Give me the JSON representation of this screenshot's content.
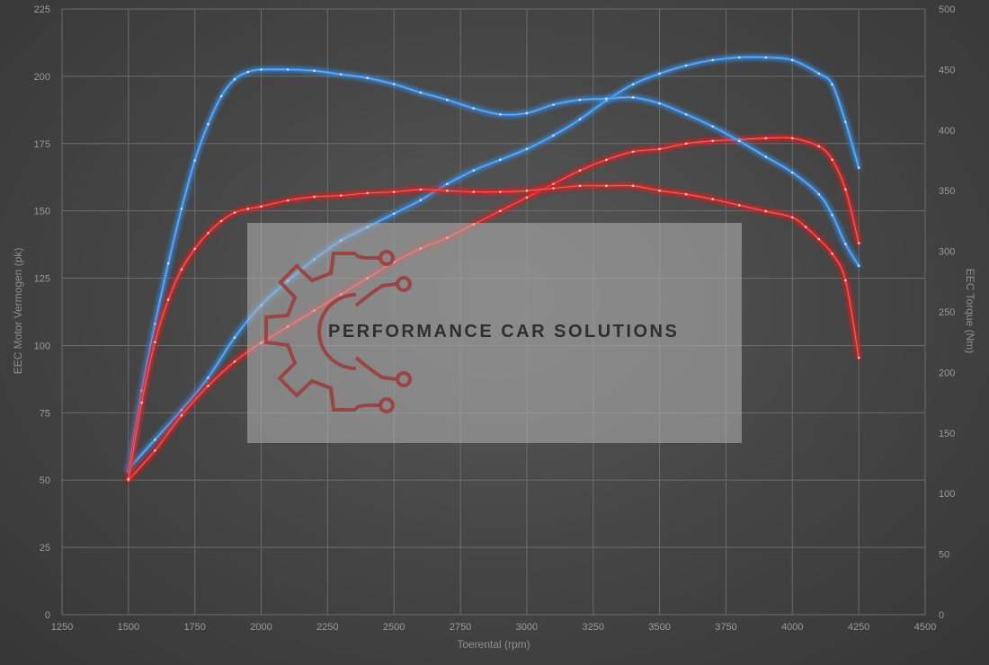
{
  "chart_data": {
    "type": "line",
    "xlabel": "Toerental (rpm)",
    "ylabel_left": "EEC Motor Vermogen (pk)",
    "ylabel_right": "EEC Torque (Nm)",
    "xlim": [
      1250,
      4500
    ],
    "xticks": [
      1250,
      1500,
      1750,
      2000,
      2250,
      2500,
      2750,
      3000,
      3250,
      3500,
      3750,
      4000,
      4250,
      4500
    ],
    "ylim_left": [
      0,
      225
    ],
    "yticks_left": [
      0,
      25,
      50,
      75,
      100,
      125,
      150,
      175,
      200,
      225
    ],
    "ylim_right": [
      0,
      500
    ],
    "yticks_right": [
      0,
      50,
      100,
      150,
      200,
      250,
      300,
      350,
      400,
      450,
      500
    ],
    "grid": true,
    "series": [
      {
        "axis": "left",
        "color": "#3a8ee6",
        "x": [
          1500,
          1600,
          1700,
          1800,
          1900,
          2000,
          2100,
          2200,
          2300,
          2400,
          2500,
          2600,
          2700,
          2800,
          2900,
          3000,
          3100,
          3200,
          3300,
          3400,
          3500,
          3600,
          3700,
          3800,
          3900,
          4000,
          4100,
          4150,
          4200,
          4250
        ],
        "y": [
          54,
          65,
          76,
          88,
          103,
          115,
          124,
          132,
          139,
          144,
          149,
          154,
          160,
          165,
          169,
          173,
          178,
          184,
          191,
          197,
          201,
          204,
          206,
          207,
          207,
          206,
          201,
          197,
          183,
          166
        ]
      },
      {
        "axis": "left",
        "color": "#e02828",
        "x": [
          1500,
          1600,
          1700,
          1800,
          1900,
          2000,
          2100,
          2200,
          2300,
          2400,
          2500,
          2600,
          2700,
          2800,
          2900,
          3000,
          3100,
          3200,
          3300,
          3400,
          3500,
          3600,
          3700,
          3800,
          3900,
          4000,
          4100,
          4150,
          4200,
          4250
        ],
        "y": [
          50,
          61,
          74,
          85,
          94,
          101,
          107,
          113,
          119,
          125,
          131,
          136,
          140,
          145,
          150,
          155,
          160,
          165,
          169,
          172,
          173,
          175,
          176,
          176.5,
          177,
          177,
          174,
          169,
          158,
          138
        ]
      },
      {
        "axis": "right",
        "color": "#3a8ee6",
        "x": [
          1500,
          1550,
          1600,
          1650,
          1700,
          1750,
          1800,
          1850,
          1900,
          1950,
          2000,
          2100,
          2200,
          2300,
          2400,
          2500,
          2600,
          2700,
          2800,
          2900,
          3000,
          3100,
          3200,
          3300,
          3400,
          3500,
          3600,
          3700,
          3800,
          3900,
          4000,
          4100,
          4150,
          4200,
          4250
        ],
        "y": [
          118,
          185,
          240,
          290,
          335,
          375,
          405,
          428,
          442,
          448,
          450,
          450,
          449,
          446,
          443,
          438,
          431,
          425,
          418,
          413,
          414,
          421,
          425,
          426,
          427,
          422,
          413,
          403,
          391,
          378,
          365,
          347,
          330,
          306,
          288
        ]
      },
      {
        "axis": "right",
        "color": "#e02828",
        "x": [
          1500,
          1550,
          1600,
          1650,
          1700,
          1750,
          1800,
          1850,
          1900,
          1950,
          2000,
          2100,
          2200,
          2300,
          2400,
          2500,
          2600,
          2700,
          2800,
          2900,
          3000,
          3100,
          3200,
          3300,
          3400,
          3500,
          3600,
          3700,
          3800,
          3900,
          4000,
          4050,
          4100,
          4150,
          4200,
          4250
        ],
        "y": [
          112,
          175,
          225,
          260,
          285,
          302,
          315,
          325,
          332,
          335,
          337,
          342,
          345,
          346,
          348,
          349,
          351,
          350,
          349,
          349,
          350,
          352,
          354,
          354,
          354,
          350,
          347,
          343,
          338,
          333,
          328,
          320,
          310,
          298,
          276,
          212
        ]
      }
    ],
    "watermark": {
      "text": "PERFORMANCE CAR SOLUTIONS",
      "logo": "gear-circuit-logo"
    }
  }
}
